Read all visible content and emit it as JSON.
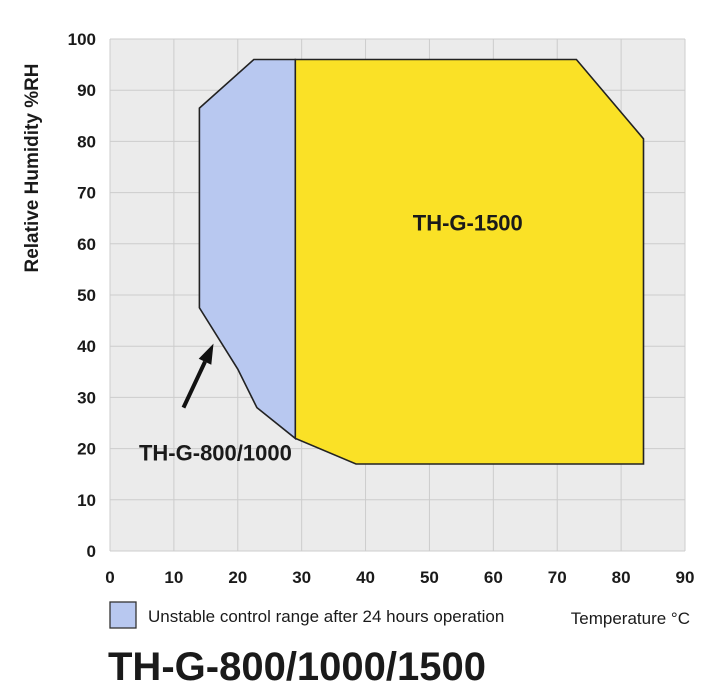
{
  "chart_data": {
    "type": "area",
    "title": "TH-G-800/1000/1500",
    "xlabel": "Temperature °C",
    "ylabel": "Relative Humidity %RH",
    "xlim": [
      0,
      90
    ],
    "ylim": [
      0,
      100
    ],
    "x_ticks": [
      0,
      10,
      20,
      30,
      40,
      50,
      60,
      70,
      80,
      90
    ],
    "y_ticks": [
      0,
      10,
      20,
      30,
      40,
      50,
      60,
      70,
      80,
      90,
      100
    ],
    "grid": true,
    "plot_background": "#ebebeb",
    "grid_color": "#cccccc",
    "series": [
      {
        "name": "TH-G-800/1000",
        "label_position": [
          16.5,
          19
        ],
        "arrow_from": [
          11.5,
          28
        ],
        "arrow_to": [
          16.2,
          40.5
        ],
        "color": "#b8c8f0",
        "points": [
          [
            14,
            86.5
          ],
          [
            22.5,
            96
          ],
          [
            29,
            96
          ],
          [
            29,
            22
          ],
          [
            23,
            28
          ],
          [
            20,
            35.5
          ],
          [
            14,
            47.5
          ]
        ]
      },
      {
        "name": "TH-G-1500",
        "label_position": [
          56,
          64
        ],
        "color": "#fae126",
        "points": [
          [
            29,
            96
          ],
          [
            73,
            96
          ],
          [
            83.5,
            80.5
          ],
          [
            83.5,
            17
          ],
          [
            38.5,
            17
          ],
          [
            29,
            22
          ]
        ]
      }
    ],
    "legend": {
      "swatch_color": "#b8c8f0",
      "text": "Unstable control range after 24 hours operation",
      "placement": "bottom-left"
    }
  }
}
